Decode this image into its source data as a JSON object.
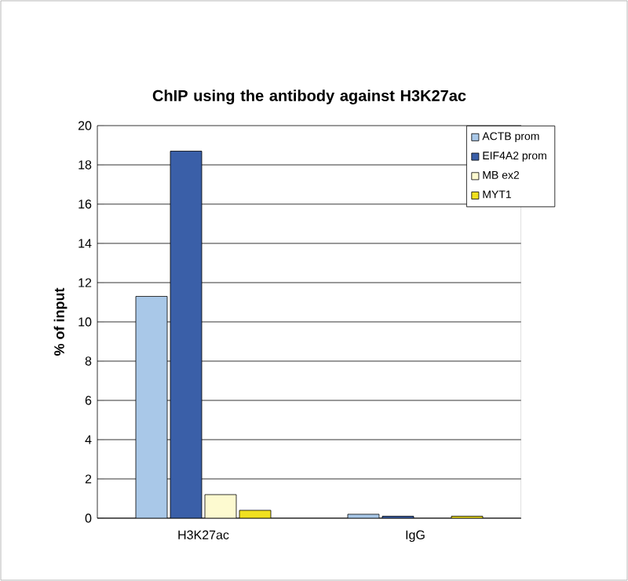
{
  "chart_data": {
    "type": "bar",
    "title": "ChIP using the antibody against H3K27ac",
    "ylabel": "% of input",
    "categories": [
      "H3K27ac",
      "IgG"
    ],
    "series": [
      {
        "name": "ACTB prom",
        "color": "#a9c8e8",
        "values": [
          11.3,
          0.2
        ]
      },
      {
        "name": "EIF4A2 prom",
        "color": "#3a5fa8",
        "values": [
          18.7,
          0.1
        ]
      },
      {
        "name": "MB ex2",
        "color": "#fdfad0",
        "values": [
          1.2,
          null
        ]
      },
      {
        "name": "MYT1",
        "color": "#f0e020",
        "values": [
          0.4,
          0.1
        ]
      }
    ],
    "ylim": [
      0,
      20
    ],
    "yticks": [
      0,
      2,
      4,
      6,
      8,
      10,
      12,
      14,
      16,
      18,
      20
    ],
    "grid": "y",
    "legend": "top right"
  }
}
